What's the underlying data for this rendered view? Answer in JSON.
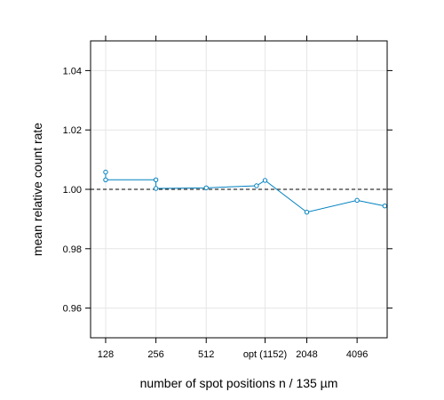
{
  "chart_data": {
    "type": "line",
    "xlabel": "number of spot positions n / 135 µm",
    "ylabel": "mean relative count rate",
    "x_scale": "log2",
    "xlim": [
      104,
      6200
    ],
    "ylim": [
      0.95,
      1.05
    ],
    "x_ticks": [
      {
        "value": 128,
        "label": "128"
      },
      {
        "value": 256,
        "label": "256"
      },
      {
        "value": 512,
        "label": "512"
      },
      {
        "value": 1152,
        "label": "opt (1152)"
      },
      {
        "value": 2048,
        "label": "2048"
      },
      {
        "value": 4096,
        "label": "4096"
      }
    ],
    "y_ticks": [
      {
        "value": 0.96,
        "label": "0.96"
      },
      {
        "value": 0.98,
        "label": "0.98"
      },
      {
        "value": 1.0,
        "label": "1.00"
      },
      {
        "value": 1.02,
        "label": "1.02"
      },
      {
        "value": 1.04,
        "label": "1.04"
      }
    ],
    "grid": true,
    "reference_line": {
      "y": 1.0,
      "style": "dashed",
      "color": "#000000"
    },
    "series": [
      {
        "color": "#0080c0",
        "points": [
          {
            "x": 128,
            "y": 1.0058
          },
          {
            "x": 128,
            "y": 1.0032
          },
          {
            "x": 256,
            "y": 1.0032
          },
          {
            "x": 256,
            "y": 1.0003
          },
          {
            "x": 512,
            "y": 1.0005
          },
          {
            "x": 1024,
            "y": 1.0012
          },
          {
            "x": 1152,
            "y": 1.003
          },
          {
            "x": 2048,
            "y": 0.9923
          },
          {
            "x": 4096,
            "y": 0.9963
          },
          {
            "x": 6000,
            "y": 0.9944
          }
        ]
      }
    ]
  }
}
